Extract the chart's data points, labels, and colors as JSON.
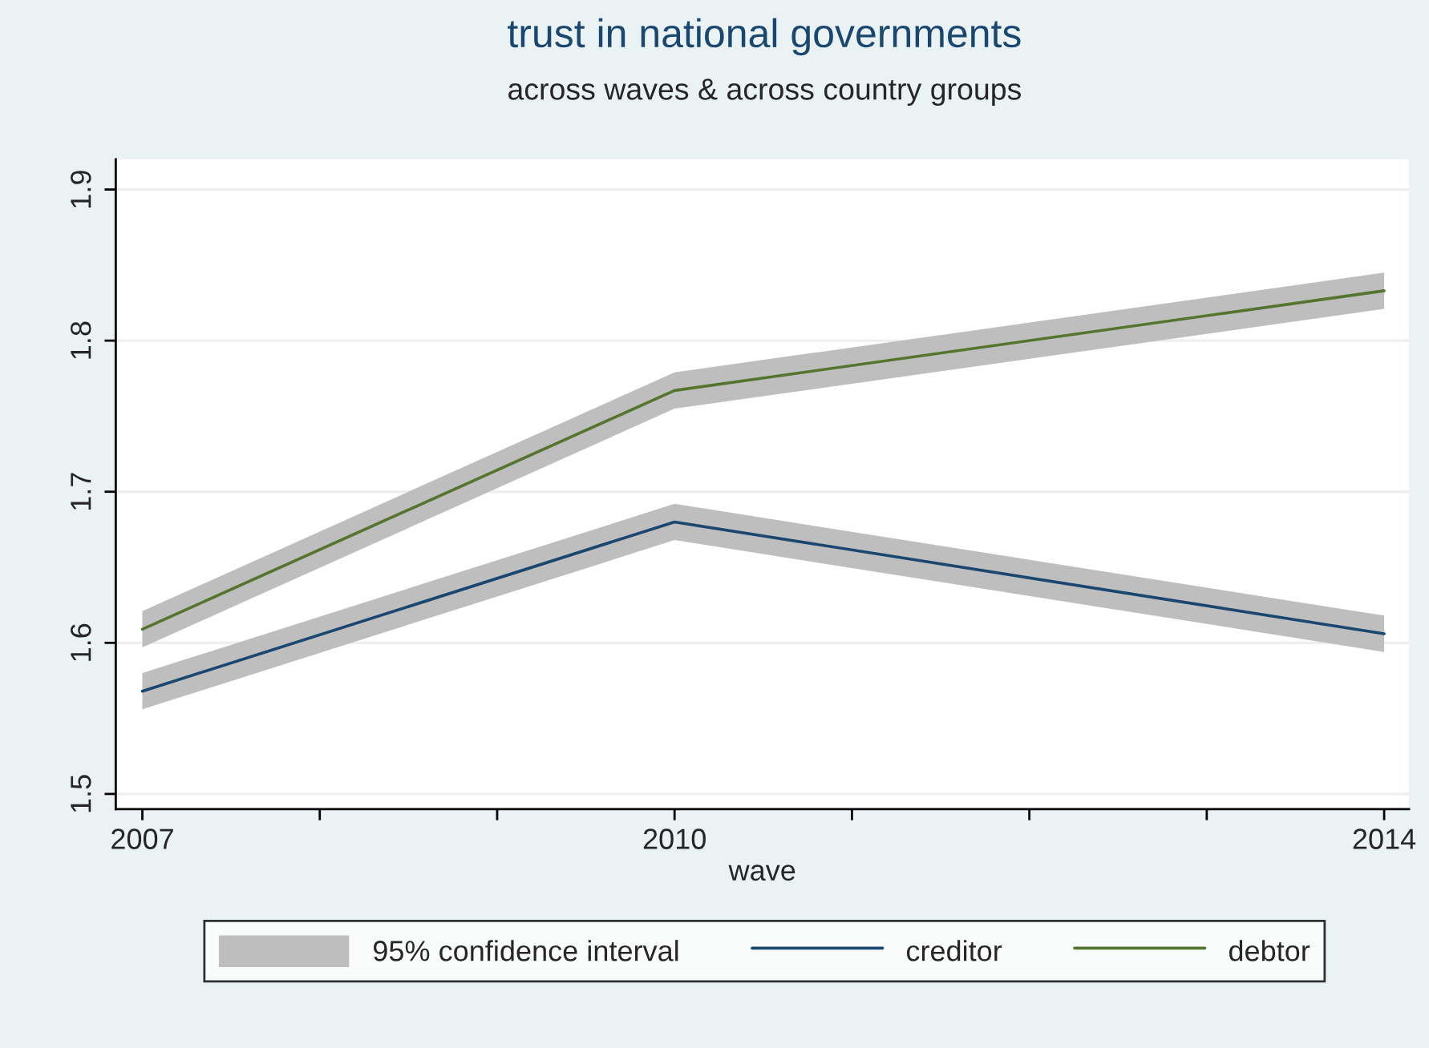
{
  "chart_data": {
    "type": "line",
    "title": "trust in national governments",
    "subtitle": "across waves & across country groups",
    "xlabel": "wave",
    "x": [
      2007,
      2010,
      2014
    ],
    "series": [
      {
        "name": "creditor",
        "color": "#1a476f",
        "values": [
          1.568,
          1.68,
          1.606
        ],
        "lower": [
          1.556,
          1.668,
          1.594
        ],
        "upper": [
          1.58,
          1.692,
          1.618
        ]
      },
      {
        "name": "debtor",
        "color": "#55752f",
        "values": [
          1.609,
          1.767,
          1.833
        ],
        "lower": [
          1.597,
          1.755,
          1.821
        ],
        "upper": [
          1.621,
          1.779,
          1.845
        ]
      }
    ],
    "annotations": [
      "95% confidence interval"
    ],
    "xlim": [
      2006.85,
      2014.14
    ],
    "xticks": [
      2007,
      {
        "value": 2008,
        "label": null
      },
      {
        "value": 2009,
        "label": null
      },
      2010,
      {
        "value": 2011,
        "label": null
      },
      {
        "value": 2012,
        "label": null
      },
      {
        "value": 2013,
        "label": null
      },
      2014
    ],
    "ylim": [
      1.49,
      1.92
    ],
    "yticks": [
      1.5,
      1.6,
      1.7,
      1.8,
      1.9
    ],
    "grid": "y",
    "legend": "bottom",
    "marker": "none",
    "line_style": "solid"
  }
}
